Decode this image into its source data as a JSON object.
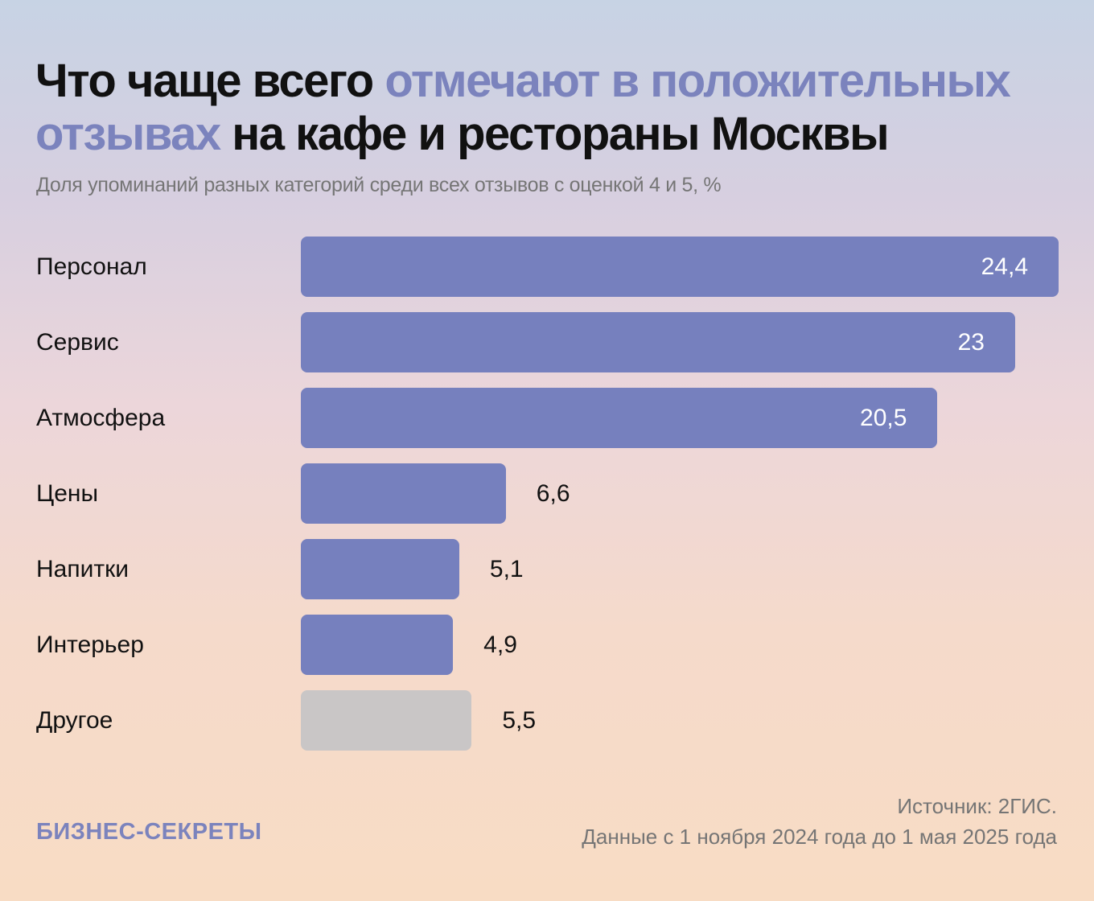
{
  "header": {
    "title_part1": "Что чаще всего ",
    "title_accent": "отмечают в положительных отзывах",
    "title_part2": " на кафе и рестораны Москвы",
    "subtitle": "Доля упоминаний разных категорий среди всех отзывов с оценкой 4 и 5, %"
  },
  "colors": {
    "accent": "#7b83bd",
    "bar": "#7680be",
    "bar_other": "#c9c6c6"
  },
  "chart_data": {
    "type": "bar",
    "orientation": "horizontal",
    "title": "Что чаще всего отмечают в положительных отзывах на кафе и рестораны Москвы",
    "subtitle": "Доля упоминаний разных категорий среди всех отзывов с оценкой 4 и 5, %",
    "xlabel": "",
    "ylabel": "",
    "unit": "%",
    "grid": false,
    "legend": "none",
    "xlim": [
      0,
      24.4
    ],
    "categories": [
      "Персонал",
      "Сервис",
      "Атмосфера",
      "Цены",
      "Напитки",
      "Интерьер",
      "Другое"
    ],
    "values": [
      24.4,
      23,
      20.5,
      6.6,
      5.1,
      4.9,
      5.5
    ],
    "value_labels": [
      "24,4",
      "23",
      "20,5",
      "6,6",
      "5,1",
      "4,9",
      "5,5"
    ],
    "highlight": [
      false,
      false,
      false,
      false,
      false,
      false,
      true
    ]
  },
  "footer": {
    "brand": "БИЗНЕС-СЕКРЕТЫ",
    "source": "Источник: 2ГИС.",
    "period": "Данные с 1 ноября 2024 года до 1 мая 2025 года"
  }
}
